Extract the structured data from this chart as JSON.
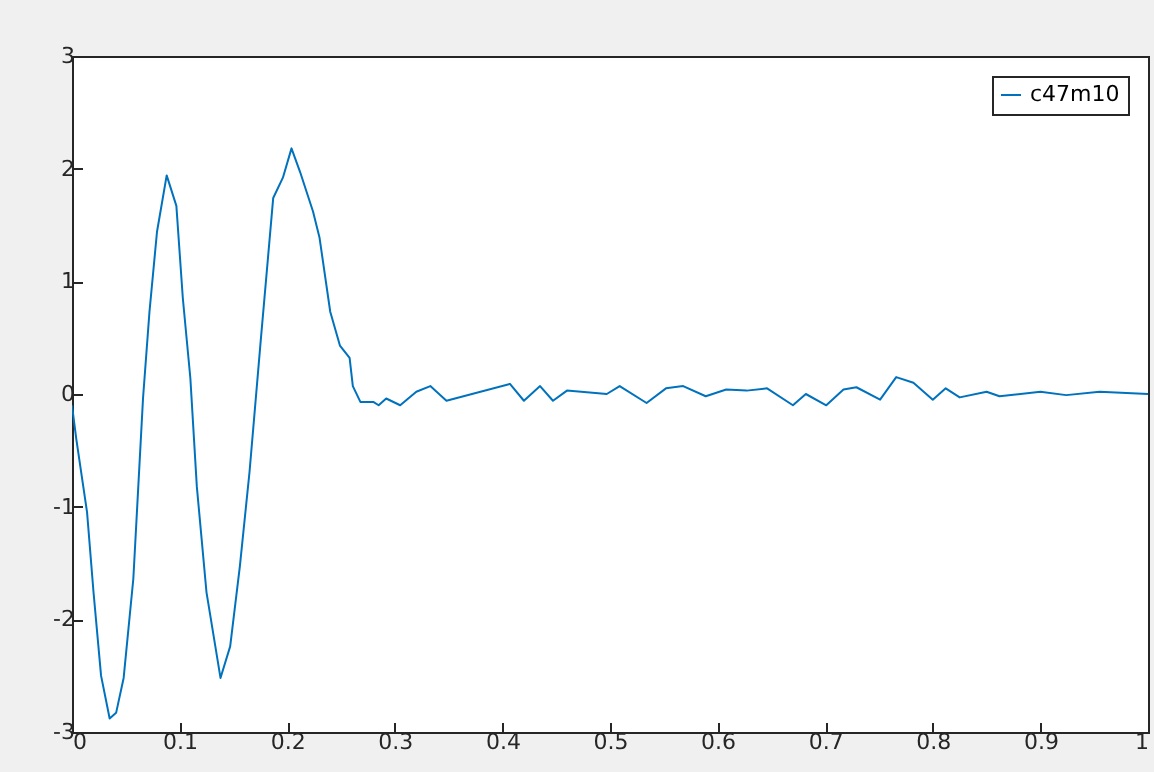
{
  "chart_data": {
    "type": "line",
    "legend": "top right",
    "grid": false,
    "xlim": [
      0,
      1
    ],
    "xticks": [
      0,
      0.1,
      0.2,
      0.3,
      0.4,
      0.5,
      0.6,
      0.7,
      0.8,
      0.9,
      1
    ],
    "ylim": [
      -3,
      3
    ],
    "yticks": [
      -3,
      -2,
      -1,
      0,
      1,
      2,
      3
    ],
    "series": [
      {
        "name": "c47m10",
        "color": "#0072bd",
        "x": [
          0,
          0.004,
          0.014,
          0.02,
          0.027,
          0.035,
          0.041,
          0.048,
          0.057,
          0.066,
          0.072,
          0.079,
          0.088,
          0.097,
          0.103,
          0.11,
          0.116,
          0.125,
          0.138,
          0.147,
          0.156,
          0.165,
          0.175,
          0.187,
          0.196,
          0.204,
          0.212,
          0.224,
          0.23,
          0.24,
          0.249,
          0.258,
          0.261,
          0.268,
          0.28,
          0.285,
          0.292,
          0.305,
          0.32,
          0.333,
          0.348,
          0.407,
          0.42,
          0.435,
          0.447,
          0.46,
          0.497,
          0.509,
          0.534,
          0.552,
          0.568,
          0.589,
          0.608,
          0.627,
          0.646,
          0.67,
          0.682,
          0.701,
          0.717,
          0.729,
          0.751,
          0.766,
          0.782,
          0.8,
          0.812,
          0.825,
          0.85,
          0.862,
          0.9,
          0.924,
          0.955,
          1
        ],
        "values": [
          -0.1,
          -0.4,
          -1.05,
          -1.76,
          -2.5,
          -2.88,
          -2.83,
          -2.52,
          -1.64,
          -0.04,
          0.73,
          1.44,
          1.94,
          1.67,
          0.85,
          0.14,
          -0.82,
          -1.76,
          -2.52,
          -2.24,
          -1.53,
          -0.69,
          0.43,
          1.74,
          1.92,
          2.18,
          1.97,
          1.62,
          1.39,
          0.73,
          0.43,
          0.32,
          0.07,
          -0.07,
          -0.07,
          -0.1,
          -0.04,
          -0.1,
          0.02,
          0.07,
          -0.06,
          0.09,
          -0.06,
          0.07,
          -0.06,
          0.03,
          0,
          0.07,
          -0.08,
          0.05,
          0.07,
          -0.02,
          0.04,
          0.03,
          0.05,
          -0.1,
          0,
          -0.1,
          0.04,
          0.06,
          -0.05,
          0.15,
          0.1,
          -0.05,
          0.05,
          -0.03,
          0.02,
          -0.02,
          0.02,
          -0.01,
          0.02,
          0
        ]
      }
    ]
  }
}
